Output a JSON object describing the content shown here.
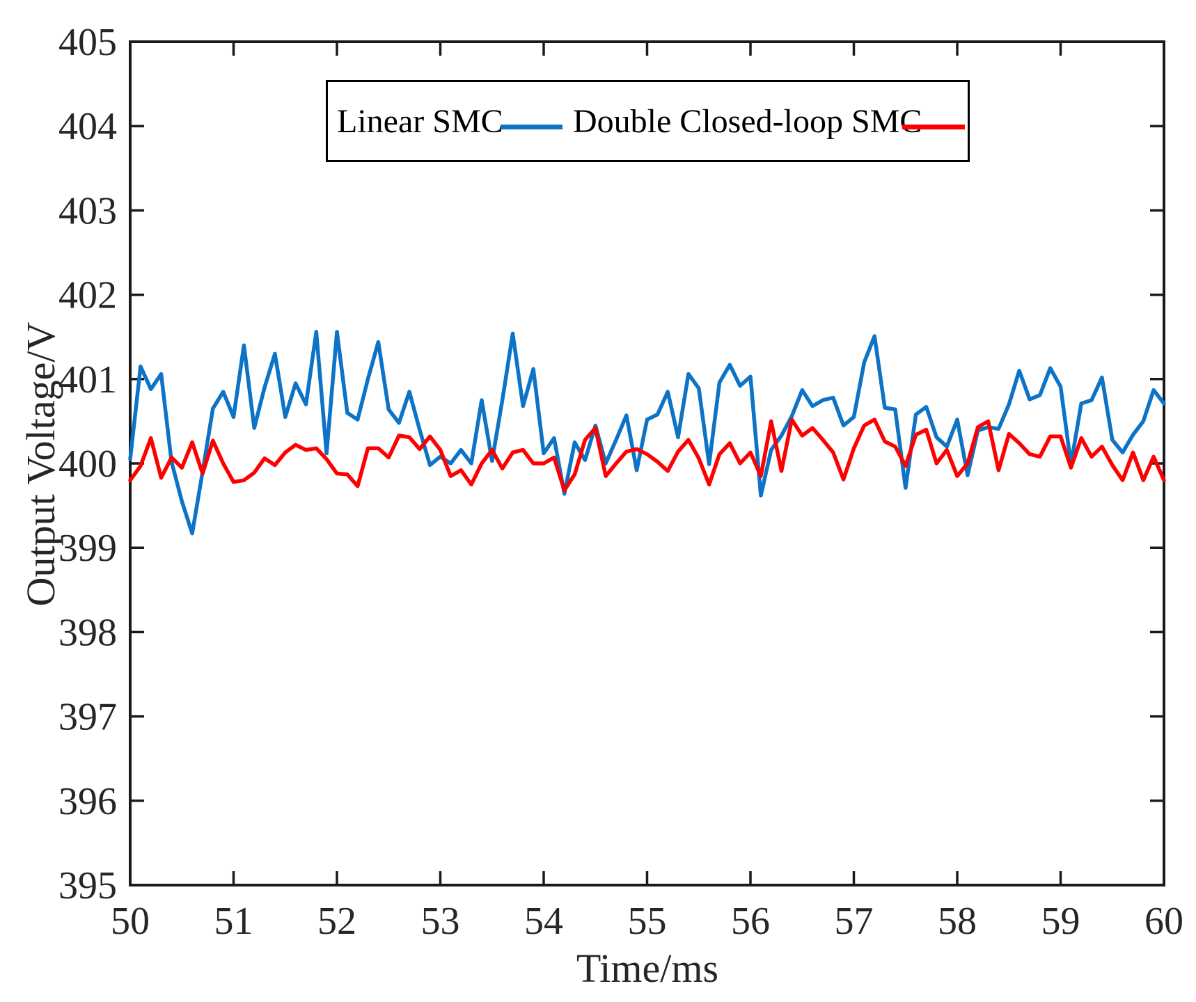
{
  "chart_data": {
    "type": "line",
    "title": "",
    "xlabel": "Time/ms",
    "ylabel": "Output Voltage/V",
    "xlim": [
      50,
      60
    ],
    "ylim": [
      395,
      405
    ],
    "x_ticks": [
      50,
      51,
      52,
      53,
      54,
      55,
      56,
      57,
      58,
      59,
      60
    ],
    "y_ticks": [
      395,
      396,
      397,
      398,
      399,
      400,
      401,
      402,
      403,
      404,
      405
    ],
    "grid": false,
    "legend_position": "top-center-inside-framed",
    "x_start": 50,
    "x_step": 0.1,
    "series": [
      {
        "name": "Linear SMC",
        "color": "#0d73c6",
        "values": [
          400.05,
          401.15,
          400.88,
          401.06,
          400.02,
          399.55,
          399.17,
          399.9,
          400.65,
          400.85,
          400.55,
          401.4,
          400.42,
          400.9,
          401.3,
          400.55,
          400.95,
          400.7,
          401.56,
          400.12,
          401.56,
          400.6,
          400.52,
          401.0,
          401.44,
          400.64,
          400.48,
          400.85,
          400.4,
          399.98,
          400.08,
          400.0,
          400.16,
          400.0,
          400.75,
          400.03,
          400.75,
          401.54,
          400.68,
          401.12,
          400.12,
          400.3,
          399.64,
          400.25,
          400.04,
          400.45,
          400.0,
          400.28,
          400.57,
          399.92,
          400.52,
          400.58,
          400.85,
          400.31,
          401.06,
          400.89,
          399.99,
          400.96,
          401.17,
          400.92,
          401.03,
          399.62,
          400.16,
          400.33,
          400.56,
          400.87,
          400.68,
          400.75,
          400.78,
          400.45,
          400.55,
          401.2,
          401.51,
          400.66,
          400.64,
          399.71,
          400.58,
          400.67,
          400.31,
          400.2,
          400.52,
          399.86,
          400.39,
          400.43,
          400.41,
          400.7,
          401.1,
          400.76,
          400.81,
          401.13,
          400.91,
          399.99,
          400.71,
          400.75,
          401.02,
          400.28,
          400.13,
          400.34,
          400.5,
          400.87,
          400.71
        ]
      },
      {
        "name": "Double Closed-loop SMC",
        "color": "#ff0000",
        "values": [
          399.8,
          399.97,
          400.3,
          399.83,
          400.07,
          399.95,
          400.25,
          399.88,
          400.27,
          400.0,
          399.78,
          399.8,
          399.89,
          400.06,
          399.98,
          400.13,
          400.22,
          400.16,
          400.18,
          400.05,
          399.88,
          399.87,
          399.73,
          400.18,
          400.18,
          400.07,
          400.33,
          400.31,
          400.17,
          400.32,
          400.16,
          399.85,
          399.92,
          399.75,
          400.0,
          400.16,
          399.94,
          400.13,
          400.16,
          400.0,
          400.0,
          400.07,
          399.68,
          399.87,
          400.28,
          400.42,
          399.85,
          400.0,
          400.14,
          400.17,
          400.11,
          400.02,
          399.91,
          400.14,
          400.28,
          400.06,
          399.75,
          400.11,
          400.24,
          400.0,
          400.13,
          399.85,
          400.5,
          399.91,
          400.52,
          400.33,
          400.42,
          400.28,
          400.13,
          399.81,
          400.18,
          400.45,
          400.52,
          400.26,
          400.2,
          399.97,
          400.34,
          400.4,
          400.0,
          400.16,
          399.85,
          400.0,
          400.43,
          400.5,
          399.92,
          400.35,
          400.24,
          400.11,
          400.08,
          400.32,
          400.32,
          399.95,
          400.3,
          400.08,
          400.2,
          399.98,
          399.8,
          400.13,
          399.8,
          400.08,
          399.8
        ]
      }
    ],
    "styles": {
      "axis_color": "#1a1a1a",
      "tick_label_color": "#262626",
      "tick_direction": "in",
      "boxed_axes": true,
      "background": "#ffffff"
    }
  }
}
